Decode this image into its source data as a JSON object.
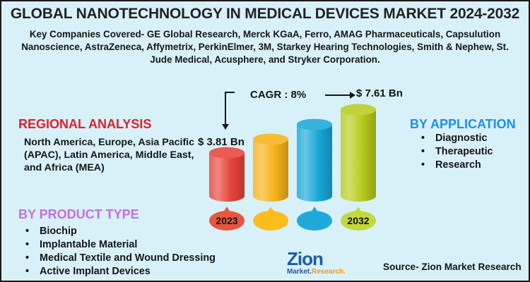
{
  "header": {
    "title": "GLOBAL NANOTECHNOLOGY IN MEDICAL DEVICES MARKET 2024-2032",
    "key_companies": "Key Companies Covered- GE Global Research, Merck KGaA, Ferro, AMAG Pharmaceuticals, Capsulution Nanoscience, AstraZeneca, Affymetrix, PerkinElmer, 3M, Starkey Hearing Technologies, Smith & Nephew, St. Jude Medical, Acusphere, and Stryker Corporation."
  },
  "regional": {
    "title": "REGIONAL  ANALYSIS",
    "text": "North America, Europe, Asia Pacific (APAC), Latin America, Middle East, and Africa (MEA)"
  },
  "product_type": {
    "title": "BY  PRODUCT TYPE",
    "items": [
      "Biochip",
      "Implantable Material",
      "Medical Textile and Wound Dressing",
      "Active Implant Devices"
    ]
  },
  "application": {
    "title": "BY APPLICATION",
    "items": [
      "Diagnostic",
      "Therapeutic",
      "Research"
    ]
  },
  "market": {
    "cagr_label": "CAGR : 8%",
    "start_value_label": "$ 3.81 Bn",
    "end_value_label": "$ 7.61 Bn"
  },
  "chart_data": {
    "type": "bar",
    "title": "Global Nanotechnology in Medical Devices Market",
    "categories": [
      "2023",
      "",
      "",
      "2032"
    ],
    "values": [
      3.81,
      5.0,
      6.3,
      7.61
    ],
    "value_labels": [
      "$ 3.81 Bn",
      "",
      "",
      "$ 7.61 Bn"
    ],
    "unit": "USD Billion",
    "cagr": "8%",
    "colors": [
      "#e8453a",
      "#f7b21a",
      "#1aa8d8",
      "#b7cc1e"
    ],
    "bubble_colors": [
      "#e8563e",
      "#fbbd1e",
      "#1eabdc",
      "#c3d83a"
    ],
    "ylim": [
      0,
      8
    ],
    "grid": false,
    "legend": "none"
  },
  "footer": {
    "logo_main": "Zion",
    "logo_sub_1": "Market.",
    "logo_sub_2": "Research.",
    "source": "Source- Zion Market Research"
  }
}
